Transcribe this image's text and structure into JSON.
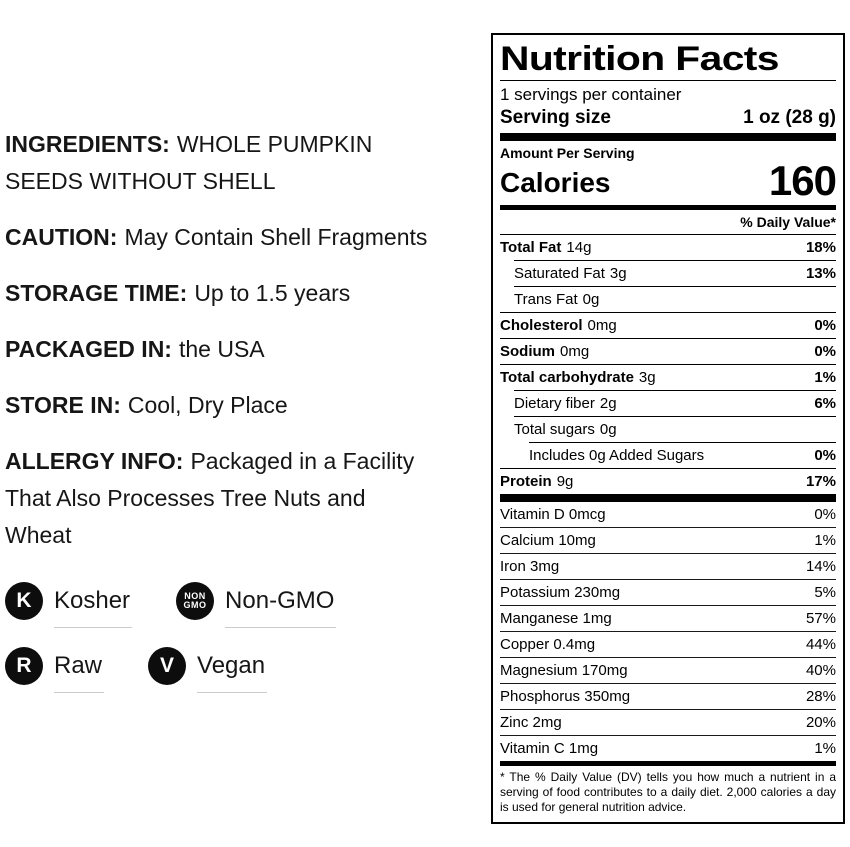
{
  "left_panel": {
    "sections": [
      {
        "label": "INGREDIENTS:",
        "value": "WHOLE PUMPKIN\nSEEDS WITHOUT SHELL"
      },
      {
        "label": "CAUTION:",
        "value": "May Contain Shell Fragments"
      },
      {
        "label": "STORAGE TIME:",
        "value": "Up to 1.5 years"
      },
      {
        "label": "PACKAGED IN:",
        "value": "the USA"
      },
      {
        "label": "STORE IN:",
        "value": "Cool, Dry Place"
      },
      {
        "label": "ALLERGY INFO:",
        "value": "Packaged in a Facility\nThat Also Processes Tree Nuts and\nWheat"
      }
    ],
    "badges": [
      {
        "icon": "K",
        "label": "Kosher"
      },
      {
        "icon": "NON\nGMO",
        "label": "Non-GMO"
      },
      {
        "icon": "R",
        "label": "Raw"
      },
      {
        "icon": "V",
        "label": "Vegan"
      }
    ]
  },
  "nutrition": {
    "title": "Nutrition Facts",
    "servings_per_container": "1 servings per container",
    "serving_size_label": "Serving size",
    "serving_size_value": "1 oz (28 g)",
    "amount_per_serving": "Amount Per Serving",
    "calories_label": "Calories",
    "calories_value": "160",
    "daily_value_header": "% Daily Value*",
    "rows": [
      {
        "label": "Total Fat",
        "amount": "14g",
        "dv": "18%"
      },
      {
        "label": "Saturated Fat",
        "amount": "3g",
        "dv": "13%"
      },
      {
        "label": "Trans Fat",
        "amount": "0g",
        "dv": ""
      },
      {
        "label": "Cholesterol",
        "amount": "0mg",
        "dv": "0%"
      },
      {
        "label": "Sodium",
        "amount": "0mg",
        "dv": "0%"
      },
      {
        "label": "Total carbohydrate",
        "amount": "3g",
        "dv": "1%"
      },
      {
        "label": "Dietary fiber",
        "amount": "2g",
        "dv": "6%"
      },
      {
        "label": "Total sugars",
        "amount": "0g",
        "dv": ""
      },
      {
        "label": "Includes 0g Added Sugars",
        "amount": "",
        "dv": "0%"
      },
      {
        "label": "Protein",
        "amount": "9g",
        "dv": "17%"
      }
    ],
    "vitamins": [
      {
        "label": "Vitamin D 0mcg",
        "dv": "0%"
      },
      {
        "label": "Calcium 10mg",
        "dv": "1%"
      },
      {
        "label": "Iron 3mg",
        "dv": "14%"
      },
      {
        "label": "Potassium 230mg",
        "dv": "5%"
      },
      {
        "label": "Manganese 1mg",
        "dv": "57%"
      },
      {
        "label": "Copper 0.4mg",
        "dv": "44%"
      },
      {
        "label": "Magnesium 170mg",
        "dv": "40%"
      },
      {
        "label": "Phosphorus 350mg",
        "dv": "28%"
      },
      {
        "label": "Zinc 2mg",
        "dv": "20%"
      },
      {
        "label": "Vitamin C 1mg",
        "dv": "1%"
      }
    ],
    "footnote": "* The % Daily Value (DV) tells you how much a nutrient in a serving of food contributes to a daily diet. 2,000 calories a day is used for general nutrition advice."
  },
  "colors": {
    "text": "#161616",
    "label_border": "#000000",
    "badge_background": "#0d0d0d",
    "badge_underline": "#cccccc"
  }
}
